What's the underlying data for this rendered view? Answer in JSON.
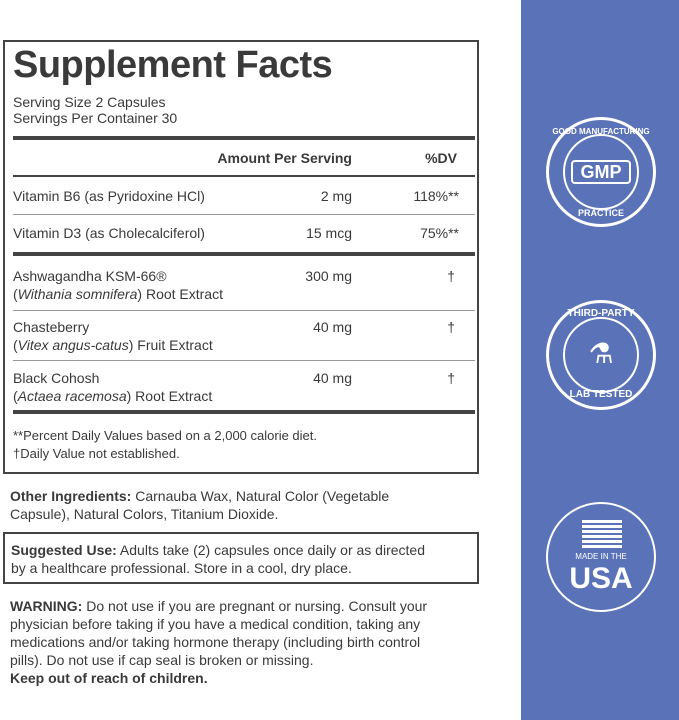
{
  "facts": {
    "title": "Supplement Facts",
    "serving_size": "Serving Size 2 Capsules",
    "servings_per_container": "Servings Per Container 30",
    "header_amount": "Amount Per Serving",
    "header_dv": "%DV",
    "rows": [
      {
        "name": "Vitamin B6 (as Pyridoxine HCl)",
        "amount": "2 mg",
        "dv": "118%**"
      },
      {
        "name": "Vitamin D3 (as Cholecalciferol)",
        "amount": "15 mcg",
        "dv": "75%**"
      },
      {
        "name": "Ashwagandha KSM-66®",
        "latin": "Withania somnifera",
        "sub": " Root Extract",
        "amount": "300 mg",
        "dv": "†"
      },
      {
        "name": "Chasteberry",
        "latin": "Vitex angus-catus",
        "sub": " Fruit Extract",
        "amount": "40 mg",
        "dv": "†"
      },
      {
        "name": "Black Cohosh",
        "latin": "Actaea racemosa",
        "sub": " Root Extract",
        "amount": "40 mg",
        "dv": "†"
      }
    ],
    "footnote1": "**Percent Daily Values based on a 2,000 calorie diet.",
    "footnote2": "†Daily Value not established."
  },
  "other": {
    "label": "Other Ingredients:",
    "line1": " Carnauba Wax, Natural Color (Vegetable",
    "line2": "Capsule), Natural Colors, Titanium Dioxide."
  },
  "suggested": {
    "label": "Suggested Use:",
    "line1": " Adults take (2) capsules once daily or as directed",
    "line2": "by a healthcare professional. Store in a cool, dry place."
  },
  "warning": {
    "label": "WARNING:",
    "line1": " Do not use if you are pregnant or nursing. Consult your",
    "line2": "physician before taking if you have a medical condition, taking any",
    "line3": "medications and/or taking hormone therapy (including birth control",
    "line4": "pills). Do not use if cap seal is broken or missing.",
    "line5": "Keep out of reach of children."
  },
  "badges": {
    "gmp": {
      "top": "GOOD MANUFACTURING",
      "center": "GMP",
      "bottom": "PRACTICE"
    },
    "lab": {
      "top": "THIRD-PARTY",
      "bottom": "LAB TESTED"
    },
    "usa": {
      "small": "MADE IN THE",
      "big": "USA"
    }
  },
  "colors": {
    "panel": "#5a72b8",
    "text": "#3a3a3a"
  }
}
